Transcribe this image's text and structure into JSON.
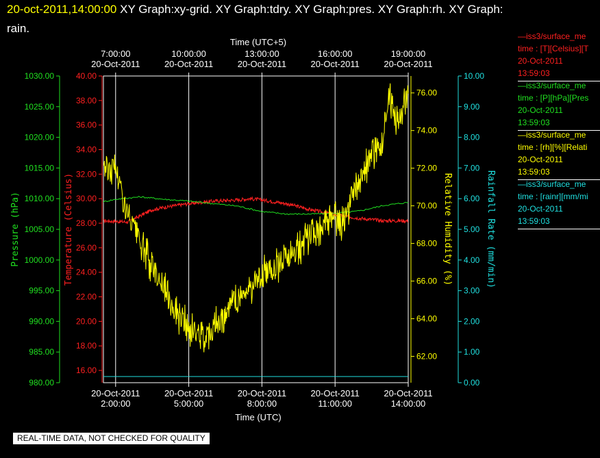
{
  "header": {
    "timestamp": "20-oct-2011,14:00:00",
    "line1": "XY Graph:xy-grid.  XY Graph:tdry.  XY Graph:pres.  XY Graph:rh.  XY Graph:",
    "line2": "rain."
  },
  "legend": [
    {
      "color": "#ff2020",
      "line1": "—iss3/surface_me",
      "line2": "time : [T][Celsius][T",
      "line3": "20-Oct-2011",
      "line4": "13:59:03"
    },
    {
      "color": "#20e020",
      "line1": "—iss3/surface_me",
      "line2": "time : [P][hPa][Pres",
      "line3": "20-Oct-2011",
      "line4": "13:59:03"
    },
    {
      "color": "#ffff00",
      "line1": "—iss3/surface_me",
      "line2": "time : [rh][%][Relati",
      "line3": "20-Oct-2011",
      "line4": "13:59:03"
    },
    {
      "color": "#20e0e0",
      "line1": "—iss3/surface_me",
      "line2": "time : [rainr][mm/mi",
      "line3": "20-Oct-2011",
      "line4": "13:59:03"
    }
  ],
  "badge": "REAL-TIME DATA, NOT CHECKED FOR QUALITY",
  "chart_data": {
    "type": "line",
    "xlabel": "Time (UTC)",
    "x2label": "Time (UTC+5)",
    "xlim": [
      "20-Oct-2011 01:30",
      "20-Oct-2011 14:00"
    ],
    "grid": "vertical lines at bottom ticks",
    "x_ticks_bottom": [
      {
        "date": "20-Oct-2011",
        "time": "2:00:00"
      },
      {
        "date": "20-Oct-2011",
        "time": "5:00:00"
      },
      {
        "date": "20-Oct-2011",
        "time": "8:00:00"
      },
      {
        "date": "20-Oct-2011",
        "time": "11:00:00"
      },
      {
        "date": "20-Oct-2011",
        "time": "14:00:00"
      }
    ],
    "x_ticks_top": [
      {
        "date": "20-Oct-2011",
        "time": "7:00:00"
      },
      {
        "date": "20-Oct-2011",
        "time": "10:00:00"
      },
      {
        "date": "20-Oct-2011",
        "time": "13:00:00"
      },
      {
        "date": "20-Oct-2011",
        "time": "16:00:00"
      },
      {
        "date": "20-Oct-2011",
        "time": "19:00:00"
      }
    ],
    "axes": {
      "pressure": {
        "label": "Pressure (hPa)",
        "color": "#20e020",
        "lim": [
          980,
          1030
        ],
        "ticks": [
          "980.00",
          "985.00",
          "990.00",
          "995.00",
          "1000.00",
          "1005.00",
          "1010.00",
          "1015.00",
          "1020.00",
          "1025.00",
          "1030.00"
        ]
      },
      "temperature": {
        "label": "Temperature (Celsius)",
        "color": "#ff2020",
        "lim": [
          15,
          40
        ],
        "ticks": [
          "16.00",
          "18.00",
          "20.00",
          "22.00",
          "24.00",
          "26.00",
          "28.00",
          "30.00",
          "32.00",
          "34.00",
          "36.00",
          "38.00",
          "40.00"
        ]
      },
      "rh": {
        "label": "Relative Humidity (%)",
        "color": "#ffff00",
        "lim": [
          60.6,
          76.9
        ],
        "ticks": [
          "62.00",
          "64.00",
          "66.00",
          "68.00",
          "70.00",
          "72.00",
          "74.00",
          "76.00"
        ]
      },
      "rain": {
        "label": "Rainfall Rate (mm/min)",
        "color": "#20e0e0",
        "lim": [
          0,
          10
        ],
        "ticks": [
          "0.00",
          "1.00",
          "2.00",
          "3.00",
          "4.00",
          "5.00",
          "6.00",
          "7.00",
          "8.00",
          "9.00",
          "10.00"
        ]
      }
    },
    "series": [
      {
        "name": "tdry",
        "axis": "temperature",
        "color": "#ff2020",
        "x": [
          "01:30",
          "02:30",
          "03:00",
          "03:30",
          "04:00",
          "05:00",
          "06:00",
          "07:00",
          "07:30",
          "08:00",
          "09:00",
          "10:00",
          "11:00",
          "12:00",
          "13:00",
          "14:00"
        ],
        "y": [
          28.2,
          28.1,
          28.6,
          29.1,
          29.3,
          29.6,
          29.8,
          29.9,
          30.0,
          29.9,
          29.6,
          29.1,
          28.7,
          28.4,
          28.2,
          28.2
        ]
      },
      {
        "name": "pres",
        "axis": "pressure",
        "color": "#20e020",
        "x": [
          "01:30",
          "02:00",
          "03:00",
          "04:00",
          "05:00",
          "06:00",
          "07:00",
          "08:00",
          "09:00",
          "10:00",
          "11:00",
          "12:00",
          "13:00",
          "14:00"
        ],
        "y": [
          1009.5,
          1009.9,
          1010.3,
          1009.9,
          1009.6,
          1009.2,
          1008.8,
          1007.9,
          1007.5,
          1007.5,
          1007.6,
          1008.0,
          1008.9,
          1009.4
        ]
      },
      {
        "name": "rh",
        "axis": "rh",
        "color": "#ffff00",
        "x": [
          "01:30",
          "01:45",
          "02:00",
          "02:15",
          "02:30",
          "02:45",
          "03:00",
          "03:30",
          "04:00",
          "04:30",
          "05:00",
          "05:30",
          "06:00",
          "06:30",
          "07:00",
          "07:30",
          "08:00",
          "08:30",
          "09:00",
          "09:30",
          "10:00",
          "10:30",
          "11:00",
          "11:15",
          "11:30",
          "12:00",
          "12:30",
          "13:00",
          "13:15",
          "13:30",
          "13:45",
          "14:00"
        ],
        "y": [
          72.4,
          71.8,
          72.2,
          70.6,
          69.4,
          68.8,
          68.0,
          66.8,
          65.6,
          64.4,
          63.4,
          63.1,
          63.5,
          64.3,
          65.1,
          65.6,
          66.3,
          66.8,
          67.3,
          67.8,
          68.4,
          69.0,
          69.3,
          68.9,
          69.7,
          71.3,
          72.6,
          73.7,
          75.8,
          74.4,
          74.8,
          76.4
        ]
      },
      {
        "name": "rain",
        "axis": "rain",
        "color": "#20e0e0",
        "x": [
          "01:30",
          "14:00"
        ],
        "y": [
          0.0,
          0.0
        ]
      }
    ]
  }
}
